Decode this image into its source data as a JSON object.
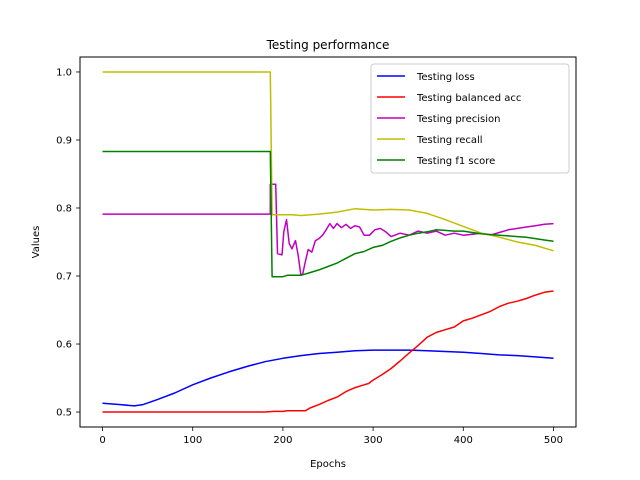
{
  "chart_data": {
    "type": "line",
    "title": "Testing performance",
    "xlabel": "Epochs",
    "ylabel": "Values",
    "xlim": [
      -25,
      525
    ],
    "ylim": [
      0.478,
      1.022
    ],
    "xticks": [
      0,
      100,
      200,
      300,
      400,
      500
    ],
    "yticks": [
      0.5,
      0.6,
      0.7,
      0.8,
      0.9,
      1.0
    ],
    "xtick_labels": [
      "0",
      "100",
      "200",
      "300",
      "400",
      "500"
    ],
    "ytick_labels": [
      "0.5",
      "0.6",
      "0.7",
      "0.8",
      "0.9",
      "1.0"
    ],
    "grid": false,
    "legend_position": "top-right",
    "series": [
      {
        "name": "Testing loss",
        "color": "#0000ff",
        "points": [
          [
            0,
            0.513
          ],
          [
            20,
            0.511
          ],
          [
            35,
            0.509
          ],
          [
            45,
            0.511
          ],
          [
            60,
            0.518
          ],
          [
            80,
            0.528
          ],
          [
            100,
            0.54
          ],
          [
            120,
            0.55
          ],
          [
            140,
            0.559
          ],
          [
            160,
            0.567
          ],
          [
            180,
            0.574
          ],
          [
            200,
            0.579
          ],
          [
            220,
            0.583
          ],
          [
            240,
            0.586
          ],
          [
            260,
            0.588
          ],
          [
            280,
            0.59
          ],
          [
            300,
            0.591
          ],
          [
            320,
            0.591
          ],
          [
            340,
            0.591
          ],
          [
            360,
            0.59
          ],
          [
            380,
            0.589
          ],
          [
            400,
            0.588
          ],
          [
            420,
            0.586
          ],
          [
            440,
            0.584
          ],
          [
            460,
            0.583
          ],
          [
            480,
            0.581
          ],
          [
            500,
            0.579
          ]
        ]
      },
      {
        "name": "Testing balanced acc",
        "color": "#ff0000",
        "points": [
          [
            0,
            0.5
          ],
          [
            100,
            0.5
          ],
          [
            180,
            0.5
          ],
          [
            190,
            0.501
          ],
          [
            200,
            0.501
          ],
          [
            205,
            0.502
          ],
          [
            215,
            0.502
          ],
          [
            225,
            0.502
          ],
          [
            230,
            0.506
          ],
          [
            240,
            0.511
          ],
          [
            250,
            0.517
          ],
          [
            260,
            0.522
          ],
          [
            270,
            0.53
          ],
          [
            280,
            0.536
          ],
          [
            290,
            0.54
          ],
          [
            295,
            0.542
          ],
          [
            300,
            0.547
          ],
          [
            310,
            0.555
          ],
          [
            320,
            0.564
          ],
          [
            330,
            0.575
          ],
          [
            340,
            0.587
          ],
          [
            350,
            0.598
          ],
          [
            360,
            0.61
          ],
          [
            370,
            0.617
          ],
          [
            380,
            0.621
          ],
          [
            390,
            0.625
          ],
          [
            400,
            0.634
          ],
          [
            410,
            0.638
          ],
          [
            420,
            0.643
          ],
          [
            430,
            0.648
          ],
          [
            440,
            0.655
          ],
          [
            450,
            0.66
          ],
          [
            460,
            0.663
          ],
          [
            470,
            0.667
          ],
          [
            480,
            0.672
          ],
          [
            490,
            0.676
          ],
          [
            500,
            0.678
          ]
        ]
      },
      {
        "name": "Testing precision",
        "color": "#bf00bf",
        "points": [
          [
            0,
            0.791
          ],
          [
            186,
            0.791
          ],
          [
            186,
            0.835
          ],
          [
            192,
            0.835
          ],
          [
            194,
            0.733
          ],
          [
            199,
            0.731
          ],
          [
            201,
            0.765
          ],
          [
            204,
            0.783
          ],
          [
            207,
            0.748
          ],
          [
            210,
            0.74
          ],
          [
            214,
            0.752
          ],
          [
            217,
            0.73
          ],
          [
            220,
            0.701
          ],
          [
            222,
            0.703
          ],
          [
            225,
            0.722
          ],
          [
            228,
            0.739
          ],
          [
            232,
            0.735
          ],
          [
            236,
            0.752
          ],
          [
            240,
            0.755
          ],
          [
            244,
            0.76
          ],
          [
            248,
            0.768
          ],
          [
            252,
            0.777
          ],
          [
            256,
            0.77
          ],
          [
            260,
            0.777
          ],
          [
            265,
            0.771
          ],
          [
            270,
            0.776
          ],
          [
            275,
            0.77
          ],
          [
            280,
            0.774
          ],
          [
            285,
            0.772
          ],
          [
            290,
            0.76
          ],
          [
            296,
            0.76
          ],
          [
            302,
            0.768
          ],
          [
            308,
            0.77
          ],
          [
            314,
            0.765
          ],
          [
            320,
            0.758
          ],
          [
            330,
            0.763
          ],
          [
            340,
            0.76
          ],
          [
            350,
            0.766
          ],
          [
            360,
            0.763
          ],
          [
            370,
            0.766
          ],
          [
            380,
            0.76
          ],
          [
            390,
            0.763
          ],
          [
            400,
            0.76
          ],
          [
            420,
            0.763
          ],
          [
            430,
            0.76
          ],
          [
            440,
            0.764
          ],
          [
            450,
            0.768
          ],
          [
            460,
            0.77
          ],
          [
            470,
            0.772
          ],
          [
            480,
            0.774
          ],
          [
            490,
            0.776
          ],
          [
            500,
            0.777
          ]
        ]
      },
      {
        "name": "Testing recall",
        "color": "#bfbf00",
        "points": [
          [
            0,
            1.0
          ],
          [
            186,
            1.0
          ],
          [
            188,
            0.79
          ],
          [
            200,
            0.79
          ],
          [
            210,
            0.79
          ],
          [
            220,
            0.789
          ],
          [
            240,
            0.791
          ],
          [
            260,
            0.794
          ],
          [
            280,
            0.799
          ],
          [
            300,
            0.797
          ],
          [
            320,
            0.798
          ],
          [
            340,
            0.797
          ],
          [
            360,
            0.792
          ],
          [
            380,
            0.783
          ],
          [
            400,
            0.773
          ],
          [
            420,
            0.763
          ],
          [
            440,
            0.757
          ],
          [
            460,
            0.75
          ],
          [
            480,
            0.745
          ],
          [
            500,
            0.737
          ]
        ]
      },
      {
        "name": "Testing f1 score",
        "color": "#008000",
        "points": [
          [
            0,
            0.883
          ],
          [
            186,
            0.883
          ],
          [
            188,
            0.699
          ],
          [
            200,
            0.699
          ],
          [
            205,
            0.701
          ],
          [
            220,
            0.701
          ],
          [
            230,
            0.705
          ],
          [
            240,
            0.709
          ],
          [
            250,
            0.714
          ],
          [
            260,
            0.719
          ],
          [
            270,
            0.726
          ],
          [
            280,
            0.733
          ],
          [
            290,
            0.736
          ],
          [
            300,
            0.742
          ],
          [
            310,
            0.745
          ],
          [
            320,
            0.751
          ],
          [
            330,
            0.756
          ],
          [
            340,
            0.76
          ],
          [
            350,
            0.763
          ],
          [
            360,
            0.765
          ],
          [
            370,
            0.768
          ],
          [
            380,
            0.767
          ],
          [
            390,
            0.766
          ],
          [
            400,
            0.766
          ],
          [
            410,
            0.764
          ],
          [
            420,
            0.762
          ],
          [
            430,
            0.761
          ],
          [
            440,
            0.76
          ],
          [
            450,
            0.759
          ],
          [
            460,
            0.758
          ],
          [
            470,
            0.757
          ],
          [
            480,
            0.755
          ],
          [
            490,
            0.753
          ],
          [
            500,
            0.751
          ]
        ]
      }
    ]
  }
}
